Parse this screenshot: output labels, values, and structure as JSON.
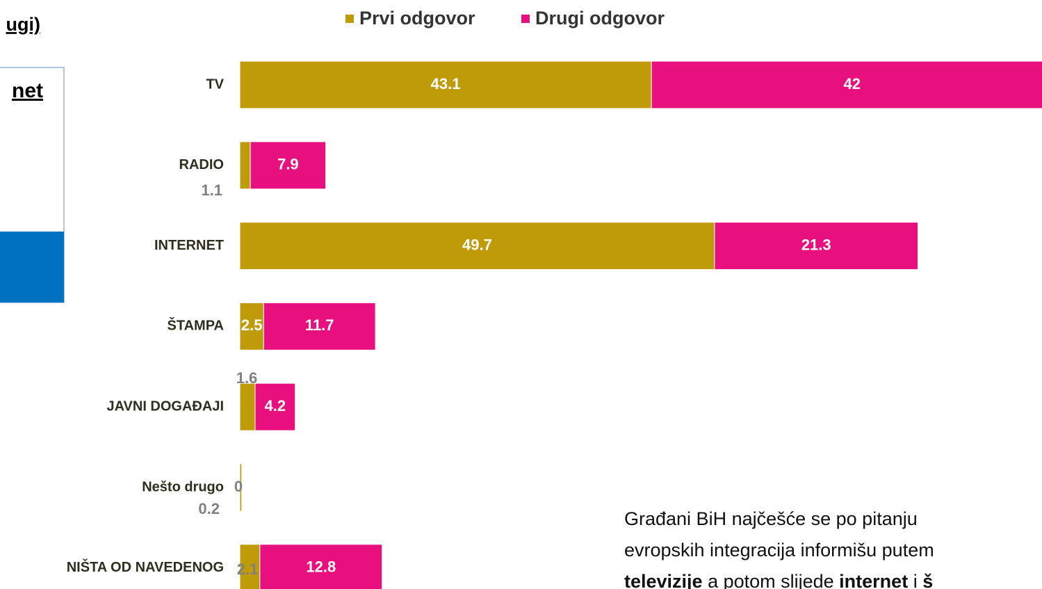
{
  "slide": {
    "heading_fragment": "ugi)",
    "box_fragment": "net",
    "note_lines": [
      "Građani BiH najčešće se po pitanju",
      "evropskih integracija informišu putem"
    ],
    "note_line3": [
      {
        "text": "televizije",
        "bold": true
      },
      {
        "text": " a potom slijede ",
        "bold": false
      },
      {
        "text": "internet",
        "bold": true
      },
      {
        "text": " i ",
        "bold": false
      },
      {
        "text": "š",
        "bold": true
      }
    ]
  },
  "chart_data": {
    "type": "stacked_barh",
    "categories": [
      "TV",
      "RADIO",
      "INTERNET",
      "ŠTAMPA",
      "JAVNI DOGAĐAJI",
      "Nešto drugo",
      "NIŠTA OD NAVEDENOG"
    ],
    "series": [
      {
        "name": "Prvi odgovor",
        "color": "#bf9b0a",
        "values": [
          43.1,
          1.1,
          49.7,
          2.5,
          1.6,
          0.2,
          2.1
        ]
      },
      {
        "name": "Drugi odgovor",
        "color": "#e8107e",
        "values": [
          42,
          7.9,
          21.3,
          11.7,
          4.2,
          0,
          12.8
        ]
      }
    ],
    "legend": "top"
  }
}
